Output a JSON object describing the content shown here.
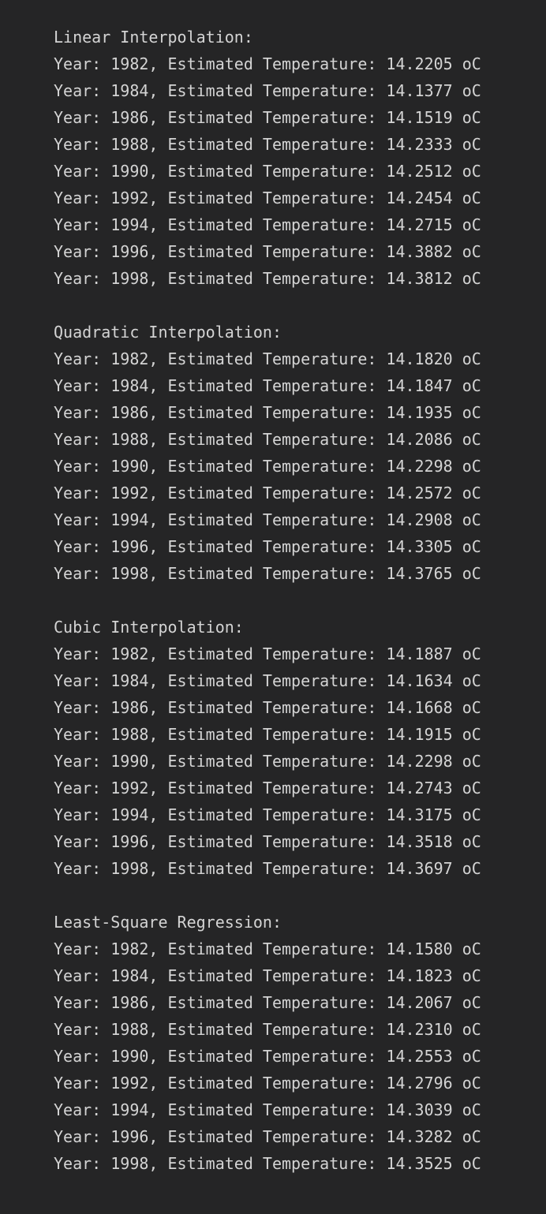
{
  "sections": [
    {
      "heading": "Linear Interpolation:",
      "lines": [
        "Year: 1982, Estimated Temperature: 14.2205 oC",
        "Year: 1984, Estimated Temperature: 14.1377 oC",
        "Year: 1986, Estimated Temperature: 14.1519 oC",
        "Year: 1988, Estimated Temperature: 14.2333 oC",
        "Year: 1990, Estimated Temperature: 14.2512 oC",
        "Year: 1992, Estimated Temperature: 14.2454 oC",
        "Year: 1994, Estimated Temperature: 14.2715 oC",
        "Year: 1996, Estimated Temperature: 14.3882 oC",
        "Year: 1998, Estimated Temperature: 14.3812 oC"
      ]
    },
    {
      "heading": "Quadratic Interpolation:",
      "lines": [
        "Year: 1982, Estimated Temperature: 14.1820 oC",
        "Year: 1984, Estimated Temperature: 14.1847 oC",
        "Year: 1986, Estimated Temperature: 14.1935 oC",
        "Year: 1988, Estimated Temperature: 14.2086 oC",
        "Year: 1990, Estimated Temperature: 14.2298 oC",
        "Year: 1992, Estimated Temperature: 14.2572 oC",
        "Year: 1994, Estimated Temperature: 14.2908 oC",
        "Year: 1996, Estimated Temperature: 14.3305 oC",
        "Year: 1998, Estimated Temperature: 14.3765 oC"
      ]
    },
    {
      "heading": "Cubic Interpolation:",
      "lines": [
        "Year: 1982, Estimated Temperature: 14.1887 oC",
        "Year: 1984, Estimated Temperature: 14.1634 oC",
        "Year: 1986, Estimated Temperature: 14.1668 oC",
        "Year: 1988, Estimated Temperature: 14.1915 oC",
        "Year: 1990, Estimated Temperature: 14.2298 oC",
        "Year: 1992, Estimated Temperature: 14.2743 oC",
        "Year: 1994, Estimated Temperature: 14.3175 oC",
        "Year: 1996, Estimated Temperature: 14.3518 oC",
        "Year: 1998, Estimated Temperature: 14.3697 oC"
      ]
    },
    {
      "heading": "Least-Square Regression:",
      "lines": [
        "Year: 1982, Estimated Temperature: 14.1580 oC",
        "Year: 1984, Estimated Temperature: 14.1823 oC",
        "Year: 1986, Estimated Temperature: 14.2067 oC",
        "Year: 1988, Estimated Temperature: 14.2310 oC",
        "Year: 1990, Estimated Temperature: 14.2553 oC",
        "Year: 1992, Estimated Temperature: 14.2796 oC",
        "Year: 1994, Estimated Temperature: 14.3039 oC",
        "Year: 1996, Estimated Temperature: 14.3282 oC",
        "Year: 1998, Estimated Temperature: 14.3525 oC"
      ]
    }
  ]
}
